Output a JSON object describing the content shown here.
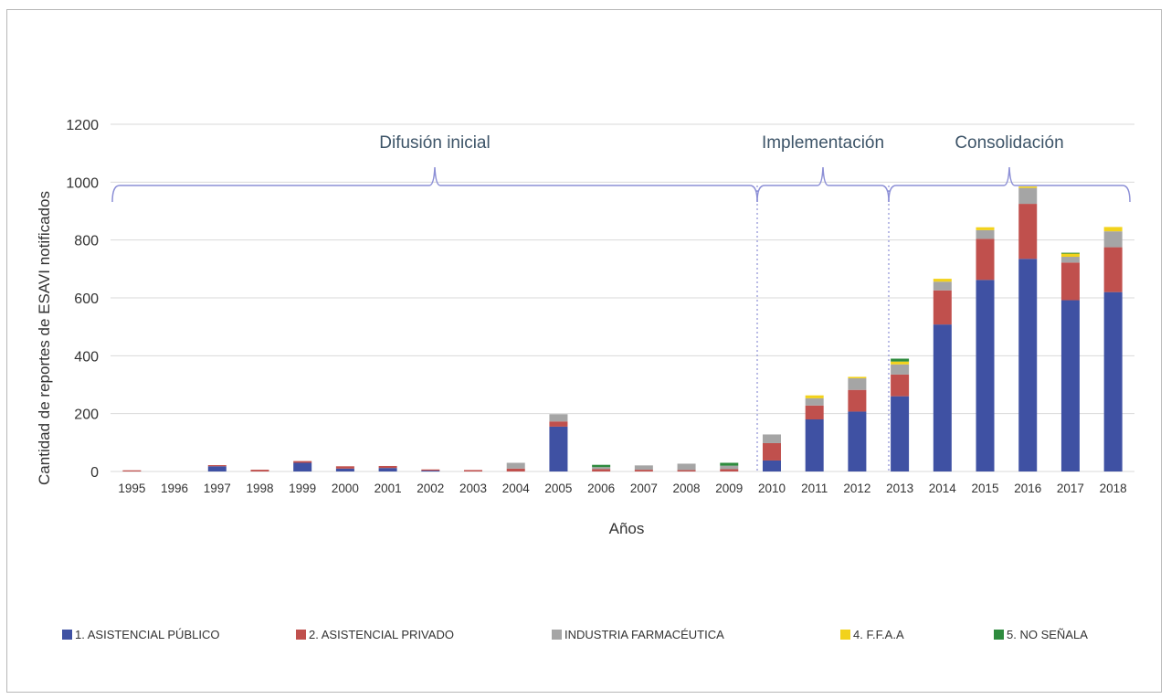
{
  "chart_data": {
    "type": "bar",
    "stacked": true,
    "ylabel": "Cantidad de reportes de ESAVI notificados",
    "xlabel": "Años",
    "ylim": [
      0,
      1200
    ],
    "yticks": [
      0,
      200,
      400,
      600,
      800,
      1000,
      1200
    ],
    "grid": true,
    "legend_position": "bottom",
    "categories": [
      "1995",
      "1996",
      "1997",
      "1998",
      "1999",
      "2000",
      "2001",
      "2002",
      "2003",
      "2004",
      "2005",
      "2006",
      "2007",
      "2008",
      "2009",
      "2010",
      "2011",
      "2012",
      "2013",
      "2014",
      "2015",
      "2016",
      "2017",
      "2018"
    ],
    "series": [
      {
        "name": "1. ASISTENCIAL PÚBLICO",
        "color": "#3f51a3",
        "values": [
          0,
          0,
          18,
          0,
          30,
          10,
          12,
          3,
          0,
          0,
          155,
          0,
          0,
          0,
          0,
          38,
          180,
          207,
          260,
          508,
          662,
          735,
          592,
          620
        ]
      },
      {
        "name": "2. ASISTENCIAL PRIVADO",
        "color": "#c0504d",
        "values": [
          4,
          0,
          4,
          6,
          6,
          8,
          7,
          4,
          5,
          10,
          18,
          8,
          6,
          5,
          8,
          60,
          48,
          75,
          75,
          118,
          142,
          190,
          130,
          155
        ]
      },
      {
        "name": "INDUSTRIA FARMACÉUTICA",
        "color": "#a5a5a5",
        "values": [
          0,
          0,
          0,
          0,
          0,
          0,
          0,
          0,
          0,
          20,
          25,
          7,
          15,
          22,
          12,
          30,
          25,
          40,
          35,
          30,
          30,
          55,
          20,
          55
        ]
      },
      {
        "name": "4. F.F.A.A",
        "color": "#f2d21b",
        "values": [
          0,
          0,
          0,
          0,
          0,
          0,
          0,
          0,
          0,
          0,
          0,
          0,
          0,
          0,
          0,
          0,
          10,
          5,
          10,
          10,
          10,
          5,
          12,
          15
        ]
      },
      {
        "name": "5. NO SEÑALA",
        "color": "#2e8b3e",
        "values": [
          0,
          0,
          0,
          0,
          0,
          0,
          0,
          0,
          0,
          0,
          0,
          8,
          0,
          0,
          10,
          0,
          0,
          0,
          10,
          0,
          0,
          0,
          2,
          0
        ]
      }
    ],
    "phases": [
      {
        "label": "Difusión inicial",
        "from": "1995",
        "to": "2009"
      },
      {
        "label": "Implementación",
        "from": "2010",
        "to": "2012"
      },
      {
        "label": "Consolidación",
        "from": "2013",
        "to": "2018"
      }
    ]
  }
}
